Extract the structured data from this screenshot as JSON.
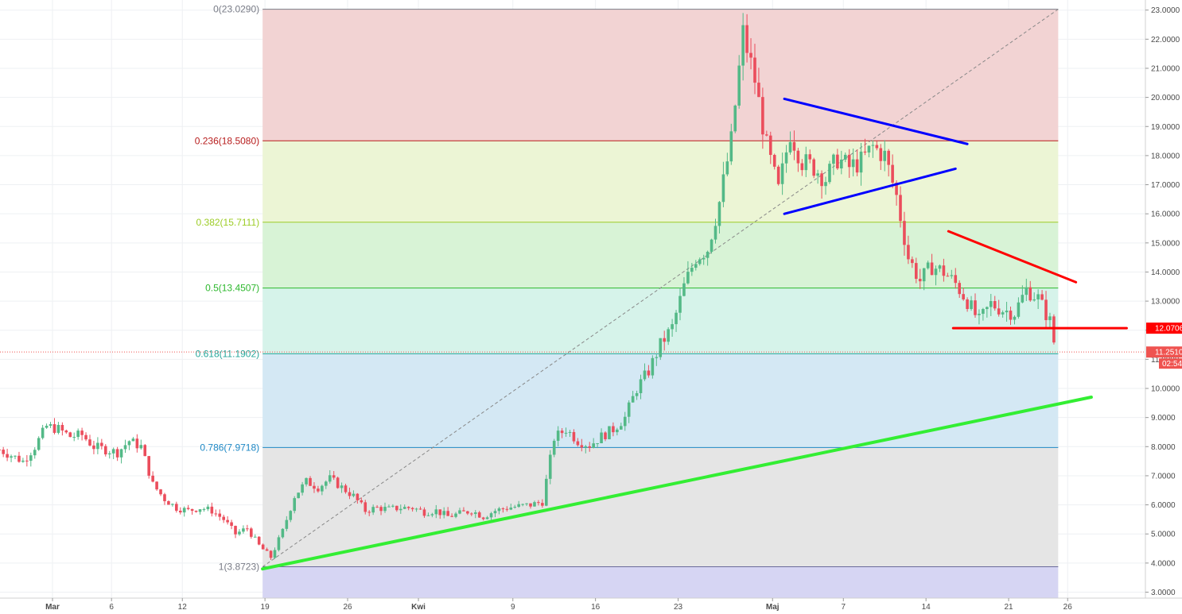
{
  "chart_data": {
    "type": "candlestick",
    "y_axis": {
      "range": [
        2.8,
        23.15
      ],
      "ticks": [
        "3.0000",
        "4.0000",
        "5.0000",
        "6.0000",
        "7.0000",
        "8.0000",
        "9.0000",
        "10.0000",
        "11.0000",
        "12.0000",
        "13.0000",
        "14.0000",
        "15.0000",
        "16.0000",
        "17.0000",
        "18.0000",
        "19.0000",
        "20.0000",
        "21.0000",
        "22.0000",
        "23.0000"
      ],
      "tick_values": [
        3,
        4,
        5,
        6,
        7,
        8,
        9,
        10,
        11,
        12,
        13,
        14,
        15,
        16,
        17,
        18,
        19,
        20,
        21,
        22,
        23
      ],
      "side": "right"
    },
    "x_axis": {
      "ticks": [
        {
          "label": "Mar",
          "day": 0
        },
        {
          "label": "6",
          "day": 5
        },
        {
          "label": "12",
          "day": 11
        },
        {
          "label": "19",
          "day": 18
        },
        {
          "label": "26",
          "day": 25
        },
        {
          "label": "Kwi",
          "day": 31
        },
        {
          "label": "9",
          "day": 39
        },
        {
          "label": "16",
          "day": 46
        },
        {
          "label": "23",
          "day": 53
        },
        {
          "label": "Maj",
          "day": 61
        },
        {
          "label": "7",
          "day": 67
        },
        {
          "label": "14",
          "day": 74
        },
        {
          "label": "21",
          "day": 81
        },
        {
          "label": "26",
          "day": 86
        }
      ],
      "bold_labels": [
        "Mar",
        "Kwi",
        "Maj"
      ]
    },
    "fibonacci": {
      "start_day": 17.8,
      "end_day": 85.2,
      "levels": [
        {
          "ratio": "0",
          "price": 23.029,
          "label": "0(23.0290)",
          "line_color": "#787b86",
          "label_color": "#787b86",
          "zone_color": "#f2d3d3"
        },
        {
          "ratio": "0.236",
          "price": 18.508,
          "label": "0.236(18.5080)",
          "line_color": "#b71c1c",
          "label_color": "#b71c1c",
          "zone_color": "#ecf5d5"
        },
        {
          "ratio": "0.382",
          "price": 15.7111,
          "label": "0.382(15.7111)",
          "line_color": "#9ccc25",
          "label_color": "#9ccc25",
          "zone_color": "#d8f3d6"
        },
        {
          "ratio": "0.5",
          "price": 13.4507,
          "label": "0.5(13.4507)",
          "line_color": "#2eb82e",
          "label_color": "#2eb82e",
          "zone_color": "#d6f3ea"
        },
        {
          "ratio": "0.618",
          "price": 11.1902,
          "label": "0.618(11.1902)",
          "line_color": "#26a69a",
          "label_color": "#26a69a",
          "zone_color": "#d4e8f4"
        },
        {
          "ratio": "0.786",
          "price": 7.9718,
          "label": "0.786(7.9718)",
          "line_color": "#1e88c5",
          "label_color": "#1e88c5",
          "zone_color": "#e5e5e5"
        },
        {
          "ratio": "1",
          "price": 3.8723,
          "label": "1(3.8723)",
          "line_color": "#6a6a9a",
          "label_color": "#787b86",
          "zone_color": "#d6d5f3"
        }
      ]
    },
    "current_price": {
      "value": 11.251,
      "label": "11.2510",
      "timer": "02:54",
      "color": "#ef5350"
    },
    "marked_level": {
      "value": 12.0706,
      "label": "12.0706",
      "color": "#ff0000"
    },
    "trendlines": [
      {
        "name": "Triangle upper",
        "color": "#0000ff",
        "width": 3,
        "from": {
          "day": 62.0,
          "price": 19.95
        },
        "to": {
          "day": 77.5,
          "price": 18.4
        }
      },
      {
        "name": "Triangle lower",
        "color": "#0000ff",
        "width": 3,
        "from": {
          "day": 62.0,
          "price": 16.0
        },
        "to": {
          "day": 76.5,
          "price": 17.55
        }
      },
      {
        "name": "Resistance",
        "color": "#ff0000",
        "width": 3,
        "from": {
          "day": 75.9,
          "price": 15.4
        },
        "to": {
          "day": 86.7,
          "price": 13.65
        }
      },
      {
        "name": "Support",
        "color": "#ff0000",
        "width": 3,
        "from": {
          "day": 76.3,
          "price": 12.07
        },
        "to": {
          "day": 91.0,
          "price": 12.07
        }
      },
      {
        "name": "Uptrend",
        "color": "#33ee33",
        "width": 4,
        "from": {
          "day": 17.8,
          "price": 3.8
        },
        "to": {
          "day": 88.0,
          "price": 9.7
        }
      }
    ],
    "price_path": [
      [
        -4.5,
        7.9
      ],
      [
        -3.5,
        7.7
      ],
      [
        -2.5,
        7.5
      ],
      [
        -1.5,
        8.0
      ],
      [
        -0.5,
        8.7
      ],
      [
        0.5,
        8.6
      ],
      [
        1.5,
        8.35
      ],
      [
        2.5,
        8.4
      ],
      [
        3.5,
        8.0
      ],
      [
        4.5,
        7.9
      ],
      [
        5.5,
        7.8
      ],
      [
        6.5,
        8.2
      ],
      [
        7.5,
        8.0
      ],
      [
        8.5,
        6.7
      ],
      [
        9.5,
        6.2
      ],
      [
        10.5,
        5.9
      ],
      [
        11.5,
        5.8
      ],
      [
        12.5,
        5.9
      ],
      [
        13.5,
        5.8
      ],
      [
        14.5,
        5.5
      ],
      [
        15.5,
        5.0
      ],
      [
        16.5,
        5.2
      ],
      [
        17.5,
        4.6
      ],
      [
        18.5,
        4.2
      ],
      [
        19.5,
        5.1
      ],
      [
        20.5,
        6.3
      ],
      [
        21.5,
        6.8
      ],
      [
        22.5,
        6.6
      ],
      [
        23.5,
        6.9
      ],
      [
        24.5,
        6.6
      ],
      [
        25.5,
        6.3
      ],
      [
        26.5,
        5.8
      ],
      [
        27.5,
        5.9
      ],
      [
        28.5,
        5.85
      ],
      [
        29.5,
        5.9
      ],
      [
        30.5,
        5.9
      ],
      [
        31.5,
        5.75
      ],
      [
        32.5,
        5.8
      ],
      [
        33.5,
        5.6
      ],
      [
        34.5,
        5.7
      ],
      [
        35.5,
        5.8
      ],
      [
        36.5,
        5.6
      ],
      [
        37.5,
        5.8
      ],
      [
        38.5,
        5.9
      ],
      [
        39.5,
        5.95
      ],
      [
        40.5,
        6.0
      ],
      [
        41.5,
        6.1
      ],
      [
        42.5,
        8.3
      ],
      [
        43.5,
        8.6
      ],
      [
        44.5,
        8.2
      ],
      [
        45.5,
        8.05
      ],
      [
        46.5,
        8.35
      ],
      [
        47.5,
        8.6
      ],
      [
        48.5,
        9.0
      ],
      [
        49.5,
        10.0
      ],
      [
        50.5,
        10.6
      ],
      [
        51.5,
        11.5
      ],
      [
        52.5,
        12.1
      ],
      [
        53.5,
        13.5
      ],
      [
        54.5,
        14.5
      ],
      [
        55.5,
        14.8
      ],
      [
        56.5,
        16.4
      ],
      [
        57.5,
        18.5
      ],
      [
        58.5,
        22.2
      ],
      [
        59.5,
        20.6
      ],
      [
        60.5,
        18.3
      ],
      [
        61.5,
        16.8
      ],
      [
        62.5,
        18.8
      ],
      [
        63.5,
        17.8
      ],
      [
        64.5,
        17.6
      ],
      [
        65.5,
        17.2
      ],
      [
        66.5,
        17.9
      ],
      [
        67.5,
        17.6
      ],
      [
        68.5,
        17.8
      ],
      [
        69.5,
        18.3
      ],
      [
        70.5,
        18.0
      ],
      [
        71.5,
        16.6
      ],
      [
        72.5,
        14.5
      ],
      [
        73.5,
        13.7
      ],
      [
        74.5,
        14.2
      ],
      [
        75.5,
        14.0
      ],
      [
        76.5,
        13.6
      ],
      [
        77.5,
        13.0
      ],
      [
        78.5,
        12.3
      ],
      [
        79.5,
        12.9
      ],
      [
        80.5,
        12.7
      ],
      [
        81.5,
        12.6
      ],
      [
        82.5,
        13.4
      ],
      [
        83.5,
        13.1
      ],
      [
        84.5,
        12.3
      ],
      [
        85.0,
        11.25
      ]
    ]
  }
}
